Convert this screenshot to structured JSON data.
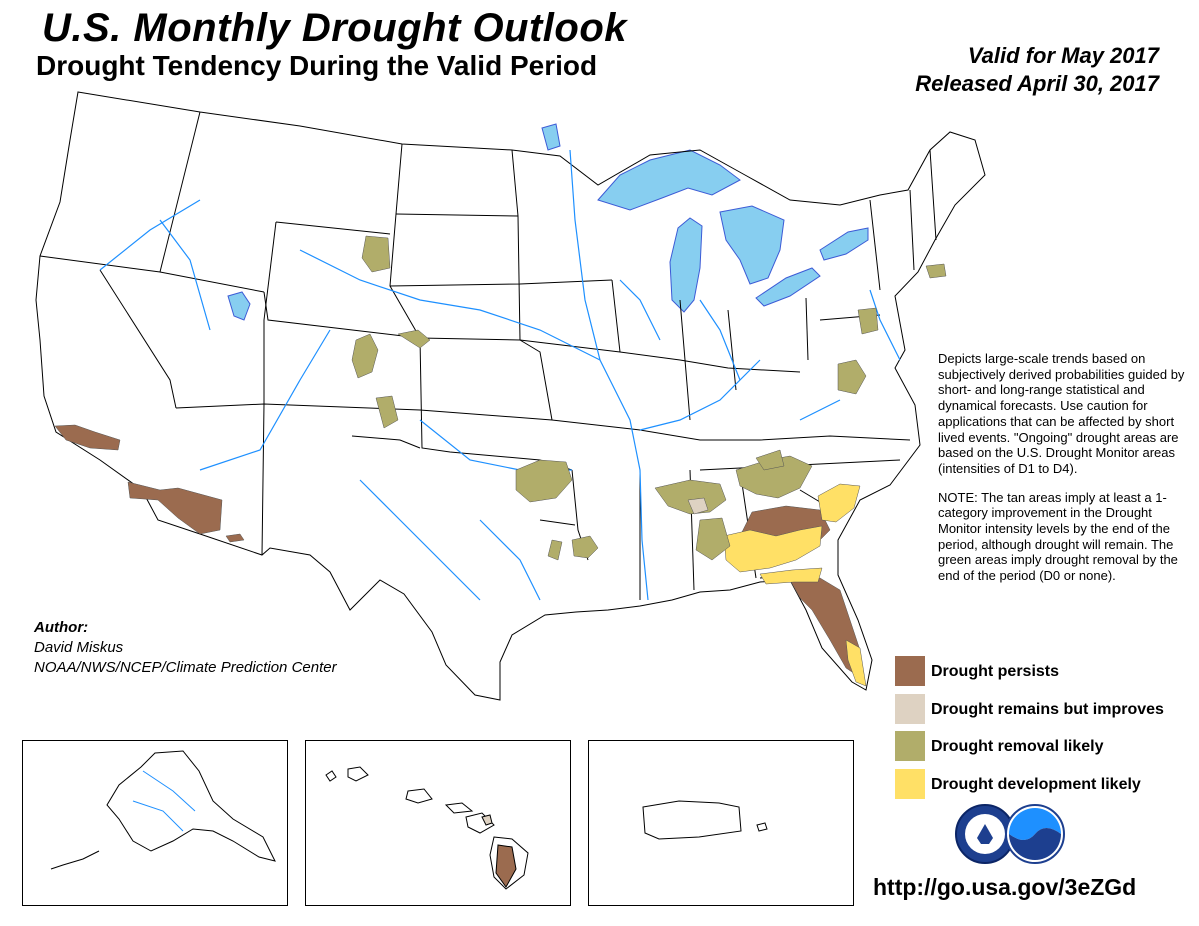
{
  "header": {
    "title": "U.S. Monthly Drought Outlook",
    "subtitle": "Drought Tendency During the Valid Period",
    "valid_for": "Valid for May 2017",
    "released": "Released April 30, 2017"
  },
  "description": {
    "paragraph1": "Depicts large-scale trends based on subjectively derived probabilities guided by short- and long-range statistical and dynamical forecasts. Use caution for applications that can be affected by short lived events. \"Ongoing\" drought areas are based on the U.S. Drought Monitor areas (intensities of D1 to D4).",
    "paragraph2": "NOTE: The tan areas imply at least a 1-category improvement in the Drought Monitor intensity levels by the end of the period, although drought will remain. The green areas imply drought removal by the end of the period (D0 or none)."
  },
  "author": {
    "label": "Author:",
    "name": "David Miskus",
    "org": "NOAA/NWS/NCEP/Climate Prediction Center"
  },
  "legend": [
    {
      "label": "Drought persists",
      "color": "#9b6b4f"
    },
    {
      "label": "Drought remains but improves",
      "color": "#ded2c2"
    },
    {
      "label": "Drought removal likely",
      "color": "#b1ad6a"
    },
    {
      "label": "Drought development likely",
      "color": "#ffe066"
    }
  ],
  "map": {
    "colors": {
      "water": "#87cef0",
      "rivers": "#1e90ff",
      "borders": "#000000"
    },
    "insets": [
      "alaska",
      "hawaii",
      "puerto-rico"
    ],
    "logos": [
      "noaa-nws-seal-icon",
      "noaa-logo-icon"
    ]
  },
  "footer": {
    "url": "http://go.usa.gov/3eZGd"
  }
}
